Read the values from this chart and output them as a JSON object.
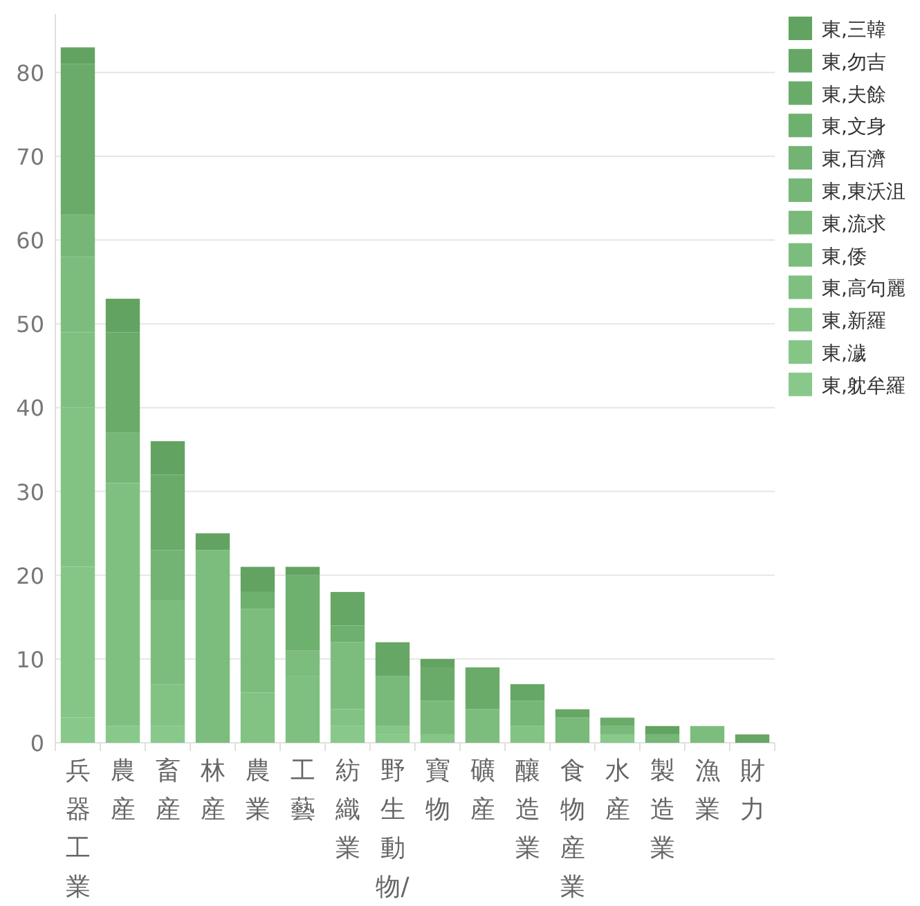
{
  "chart_data": {
    "type": "bar",
    "stacked": true,
    "categories": [
      "兵器工業",
      "農産",
      "畜産",
      "林産",
      "農業",
      "工藝",
      "紡織業",
      "野生動物/",
      "寶物",
      "礦産",
      "釀造業",
      "食物産業",
      "水産",
      "製造業",
      "漁業",
      "財力"
    ],
    "series": [
      {
        "name": "東,躭牟羅",
        "color": "#88c98b",
        "values": [
          3,
          2,
          2,
          0,
          0,
          0,
          2,
          1,
          0,
          0,
          0,
          0,
          1,
          0,
          0,
          0
        ]
      },
      {
        "name": "東,濊",
        "color": "#85c687",
        "values": [
          18,
          0,
          0,
          0,
          0,
          0,
          0,
          1,
          1,
          0,
          0,
          0,
          0,
          0,
          0,
          0
        ]
      },
      {
        "name": "東,新羅",
        "color": "#82c384",
        "values": [
          19,
          0,
          5,
          0,
          6,
          0,
          2,
          0,
          0,
          0,
          2,
          0,
          0,
          0,
          0,
          0
        ]
      },
      {
        "name": "東,高句麗",
        "color": "#7fc081",
        "values": [
          9,
          29,
          0,
          0,
          0,
          8,
          0,
          0,
          0,
          0,
          0,
          0,
          0,
          0,
          0,
          0
        ]
      },
      {
        "name": "東,倭",
        "color": "#7cbd7e",
        "values": [
          9,
          0,
          10,
          23,
          10,
          3,
          8,
          0,
          0,
          4,
          0,
          0,
          0,
          0,
          2,
          0
        ]
      },
      {
        "name": "東,流求",
        "color": "#79ba7a",
        "values": [
          0,
          0,
          0,
          0,
          0,
          0,
          0,
          6,
          4,
          0,
          0,
          3,
          1,
          0,
          0,
          0
        ]
      },
      {
        "name": "東,東沃沮",
        "color": "#76b777",
        "values": [
          5,
          6,
          0,
          0,
          0,
          0,
          0,
          0,
          0,
          0,
          3,
          0,
          0,
          1,
          0,
          0
        ]
      },
      {
        "name": "東,百濟",
        "color": "#73b373",
        "values": [
          0,
          0,
          6,
          0,
          0,
          0,
          0,
          0,
          0,
          0,
          0,
          0,
          0,
          0,
          0,
          0
        ]
      },
      {
        "name": "東,文身",
        "color": "#6eb06e",
        "values": [
          0,
          0,
          0,
          0,
          2,
          9,
          2,
          0,
          0,
          0,
          0,
          0,
          0,
          0,
          0,
          0
        ]
      },
      {
        "name": "東,夫餘",
        "color": "#6aab69",
        "values": [
          18,
          12,
          9,
          0,
          0,
          0,
          0,
          0,
          4,
          5,
          0,
          0,
          1,
          0,
          0,
          0
        ]
      },
      {
        "name": "東,勿吉",
        "color": "#66a765",
        "values": [
          0,
          0,
          0,
          0,
          0,
          0,
          4,
          4,
          0,
          0,
          2,
          1,
          0,
          0,
          0,
          1
        ]
      },
      {
        "name": "東,三韓",
        "color": "#63a361",
        "values": [
          2,
          4,
          4,
          2,
          3,
          1,
          0,
          0,
          1,
          0,
          0,
          0,
          0,
          1,
          0,
          0
        ]
      }
    ],
    "ylim": [
      0,
      87
    ],
    "yticks": [
      0,
      10,
      20,
      30,
      40,
      50,
      60,
      70,
      80
    ],
    "grid": "y",
    "legend": "right"
  }
}
